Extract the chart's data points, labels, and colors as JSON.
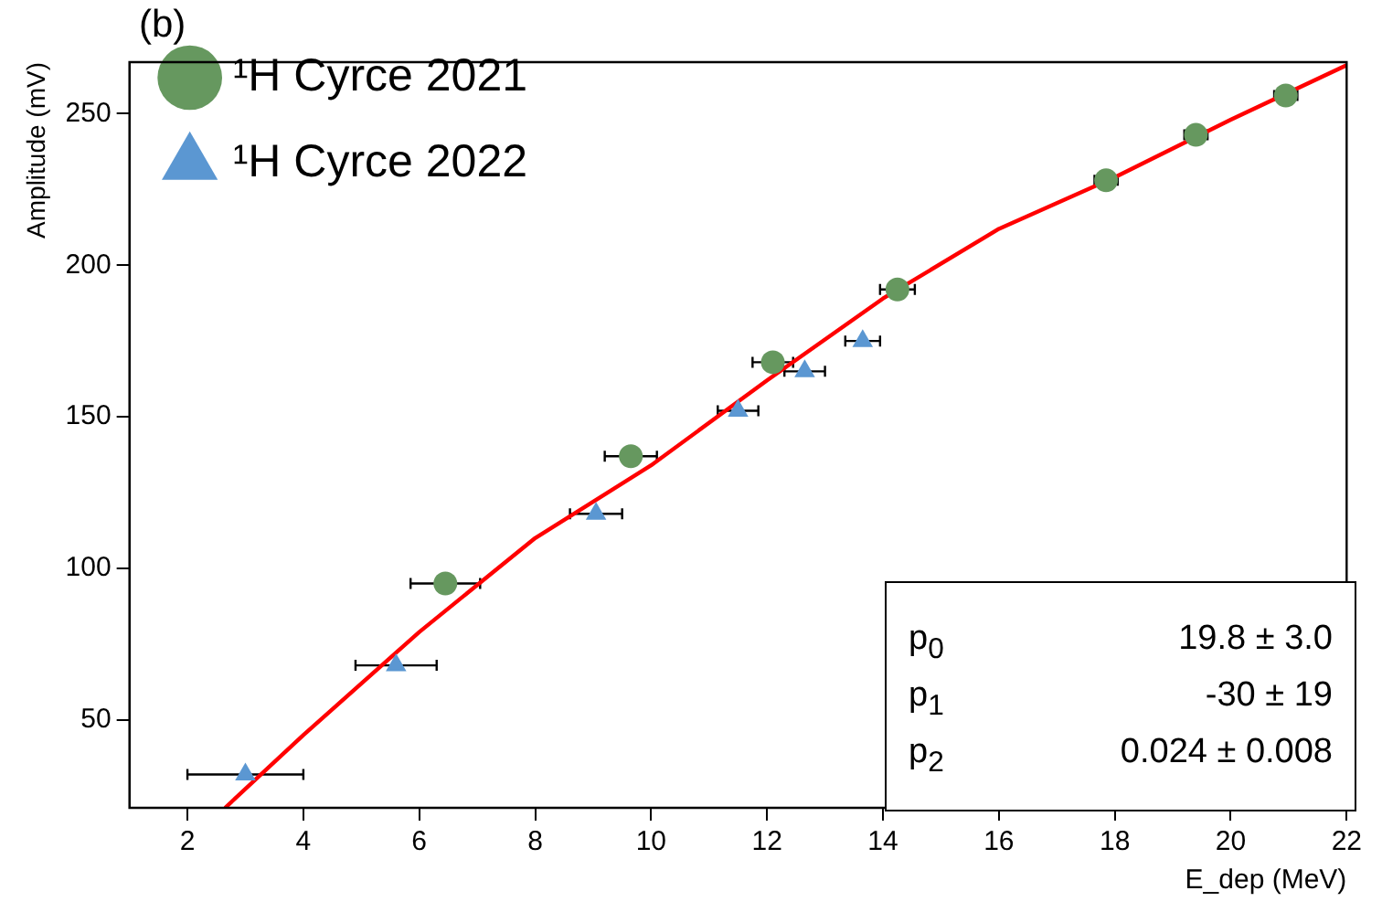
{
  "chart_data": {
    "type": "scatter",
    "title": "(b)",
    "xlabel": "E_dep (MeV)",
    "ylabel": "Amplitude (mV)",
    "xlim": [
      1,
      22
    ],
    "xticks": [
      2,
      4,
      6,
      8,
      10,
      12,
      14,
      16,
      18,
      20,
      22
    ],
    "ylim": [
      21,
      267
    ],
    "yticks": [
      50,
      100,
      150,
      200,
      250
    ],
    "grid": false,
    "legend": "top left",
    "annotations": [
      "p$_{0}$ 19.8 ± 3.0",
      "p$_{1}$ -30 ± 19",
      "p$_{2}$ 0.024 ± 0.008"
    ],
    "series": [
      {
        "name": "¹H Cyrce 2021",
        "color": "#66985f",
        "marker": "circle",
        "x": [
          6.45,
          9.65,
          12.1,
          14.25,
          17.85,
          19.4,
          20.95
        ],
        "values": [
          95,
          137,
          168,
          192,
          228,
          243,
          256
        ],
        "xerrors": [
          0.6,
          0.45,
          0.35,
          0.3,
          0.2,
          0.2,
          0.2
        ]
      },
      {
        "name": "¹H Cyrce 2022",
        "color": "#5b97d2",
        "marker": "triangle",
        "x": [
          3.0,
          5.6,
          9.05,
          11.5,
          12.65,
          13.65
        ],
        "values": [
          32,
          68,
          118,
          152,
          165,
          175
        ],
        "xerrors": [
          1.0,
          0.7,
          0.45,
          0.35,
          0.35,
          0.3
        ]
      },
      {
        "type": "line",
        "color": "#ff0000",
        "marker": "none",
        "x": [
          2.65,
          4,
          6,
          8,
          10,
          12,
          14,
          16,
          18,
          20,
          22
        ],
        "values": [
          21,
          45,
          79,
          110,
          134,
          162,
          189,
          212,
          229,
          248,
          266
        ]
      }
    ]
  }
}
